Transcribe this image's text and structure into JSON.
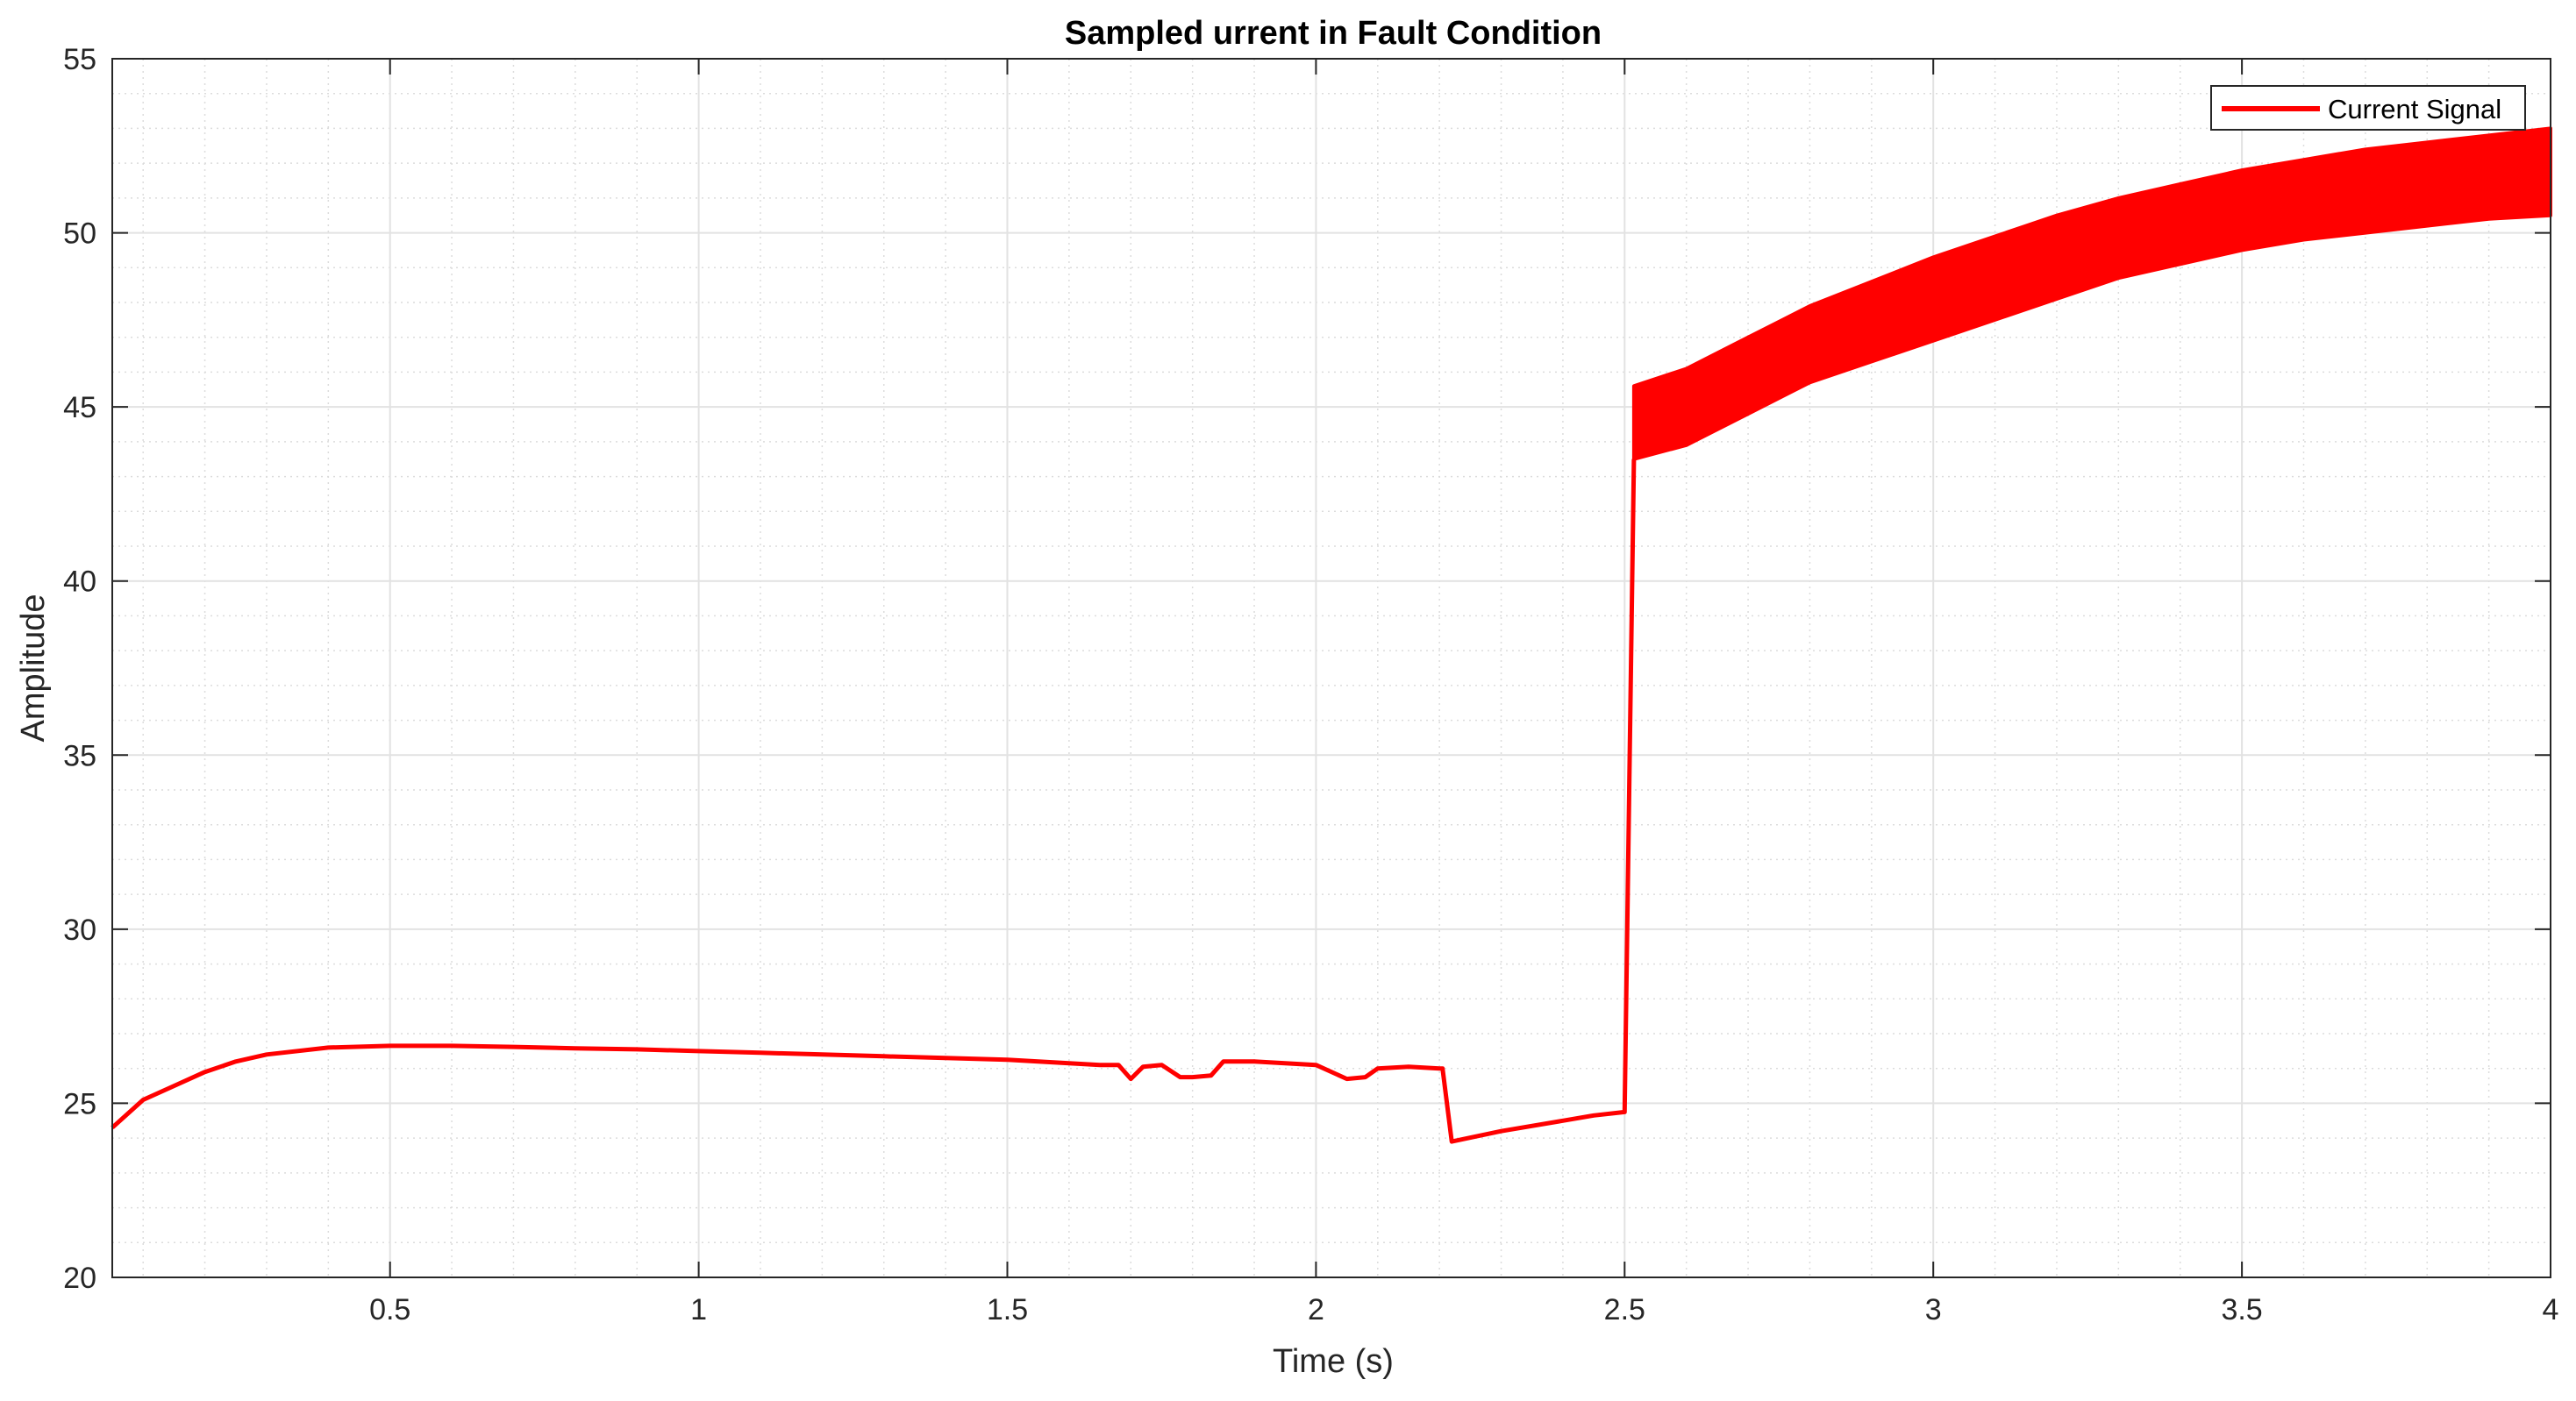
{
  "chart_data": {
    "type": "line",
    "title": "Sampled urrent in Fault Condition",
    "xlabel": "Time (s)",
    "ylabel": "Amplitude",
    "xlim": [
      0.05,
      4
    ],
    "ylim": [
      20,
      55
    ],
    "xticks": [
      0.5,
      1,
      1.5,
      2,
      2.5,
      3,
      3.5,
      4
    ],
    "xtick_labels": [
      "0.5",
      "1",
      "1.5",
      "2",
      "2.5",
      "3",
      "3.5",
      "4"
    ],
    "yticks": [
      20,
      25,
      30,
      35,
      40,
      45,
      50,
      55
    ],
    "ytick_labels": [
      "20",
      "25",
      "30",
      "35",
      "40",
      "45",
      "50",
      "55"
    ],
    "grid": true,
    "minor_grid": true,
    "legend_position": "top-right",
    "series": [
      {
        "name": "Current Signal",
        "color": "#ff0000",
        "pre_fault": {
          "x": [
            0.05,
            0.1,
            0.15,
            0.2,
            0.25,
            0.3,
            0.4,
            0.5,
            0.6,
            0.7,
            0.8,
            0.9,
            1.0,
            1.1,
            1.2,
            1.3,
            1.4,
            1.5,
            1.55,
            1.6,
            1.65,
            1.68,
            1.7,
            1.72,
            1.75,
            1.78,
            1.8,
            1.83,
            1.85,
            1.9,
            1.95,
            2.0,
            2.05,
            2.08,
            2.1,
            2.15,
            2.2,
            2.205,
            2.22,
            2.3,
            2.4,
            2.45,
            2.5
          ],
          "y": [
            24.3,
            25.1,
            25.5,
            25.9,
            26.2,
            26.4,
            26.6,
            26.65,
            26.65,
            26.62,
            26.58,
            26.55,
            26.5,
            26.45,
            26.4,
            26.35,
            26.3,
            26.25,
            26.2,
            26.15,
            26.1,
            26.1,
            25.7,
            26.05,
            26.1,
            25.75,
            25.75,
            25.8,
            26.2,
            26.2,
            26.15,
            26.1,
            25.7,
            25.75,
            26.0,
            26.05,
            26.0,
            26.0,
            23.9,
            24.2,
            24.5,
            24.65,
            24.75
          ]
        },
        "fault": {
          "x": [
            2.515,
            2.6,
            2.7,
            2.8,
            2.9,
            3.0,
            3.1,
            3.2,
            3.3,
            3.4,
            3.5,
            3.6,
            3.7,
            3.8,
            3.9,
            4.0
          ],
          "upper": [
            45.6,
            46.1,
            47.0,
            47.9,
            48.6,
            49.3,
            49.9,
            50.5,
            51.0,
            51.4,
            51.8,
            52.1,
            52.4,
            52.6,
            52.8,
            53.0
          ],
          "lower": [
            43.5,
            43.9,
            44.8,
            45.7,
            46.3,
            46.9,
            47.5,
            48.1,
            48.7,
            49.1,
            49.5,
            49.8,
            50.0,
            50.2,
            50.4,
            50.5
          ]
        }
      }
    ]
  }
}
